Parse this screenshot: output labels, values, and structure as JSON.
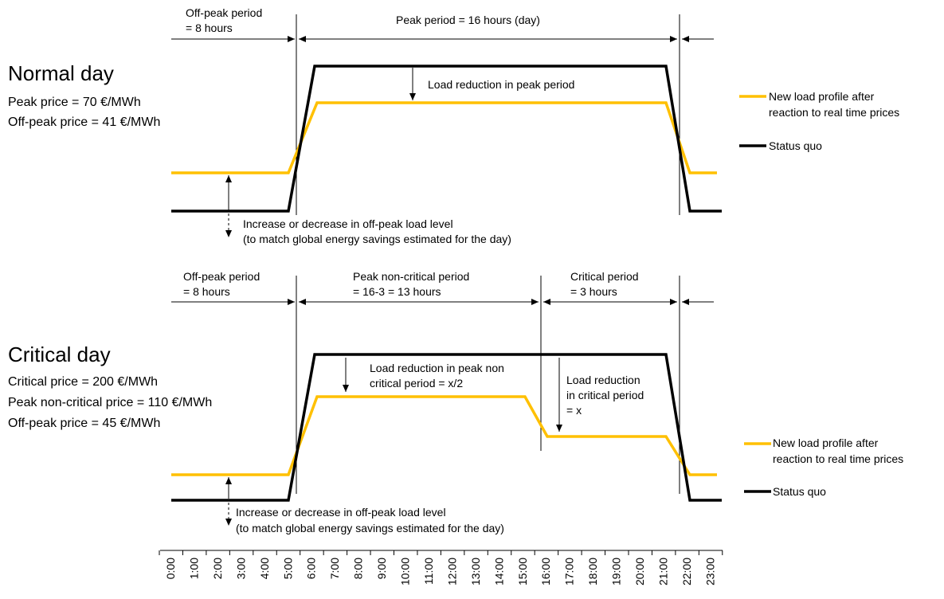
{
  "colors": {
    "status_quo": "#000000",
    "new_profile": "#FFC000"
  },
  "normal": {
    "title": "Normal day",
    "prices": [
      "Peak price = 70 €/MWh",
      "Off-peak price = 41 €/MWh"
    ],
    "offpeak_label": [
      "Off-peak period",
      "= 8 hours"
    ],
    "peak_label": "Peak period = 16 hours (day)",
    "reduction_label": "Load reduction in peak period",
    "change_label": [
      "Increase or decrease in off-peak load level",
      "(to match global energy savings estimated for the day)"
    ],
    "legend_new": [
      "New load profile after",
      "reaction to real time prices"
    ],
    "legend_status": "Status quo"
  },
  "critical": {
    "title": "Critical day",
    "prices": [
      "Critical price = 200 €/MWh",
      "Peak non-critical price = 110 €/MWh",
      "Off-peak price = 45 €/MWh"
    ],
    "offpeak_label": [
      "Off-peak period",
      "= 8 hours"
    ],
    "noncritical_label": [
      "Peak non-critical period",
      "= 16-3 = 13 hours"
    ],
    "critical_label": [
      "Critical period",
      "= 3 hours"
    ],
    "reduction_noncritical_label": [
      "Load reduction in peak non",
      "critical period = x/2"
    ],
    "reduction_critical_label": [
      "Load reduction",
      "in critical period",
      "= x"
    ],
    "change_label": [
      "Increase or decrease in off-peak load level",
      "(to match global energy savings estimated for the day)"
    ],
    "legend_new": [
      "New load profile after",
      "reaction to real time prices"
    ],
    "legend_status": "Status quo"
  },
  "time_axis": [
    "0:00",
    "1:00",
    "2:00",
    "3:00",
    "4:00",
    "5:00",
    "6:00",
    "7:00",
    "8:00",
    "9:00",
    "10:00",
    "11:00",
    "12:00",
    "13:00",
    "14:00",
    "15:00",
    "16:00",
    "17:00",
    "18:00",
    "19:00",
    "20:00",
    "21:00",
    "22:00",
    "23:00"
  ]
}
